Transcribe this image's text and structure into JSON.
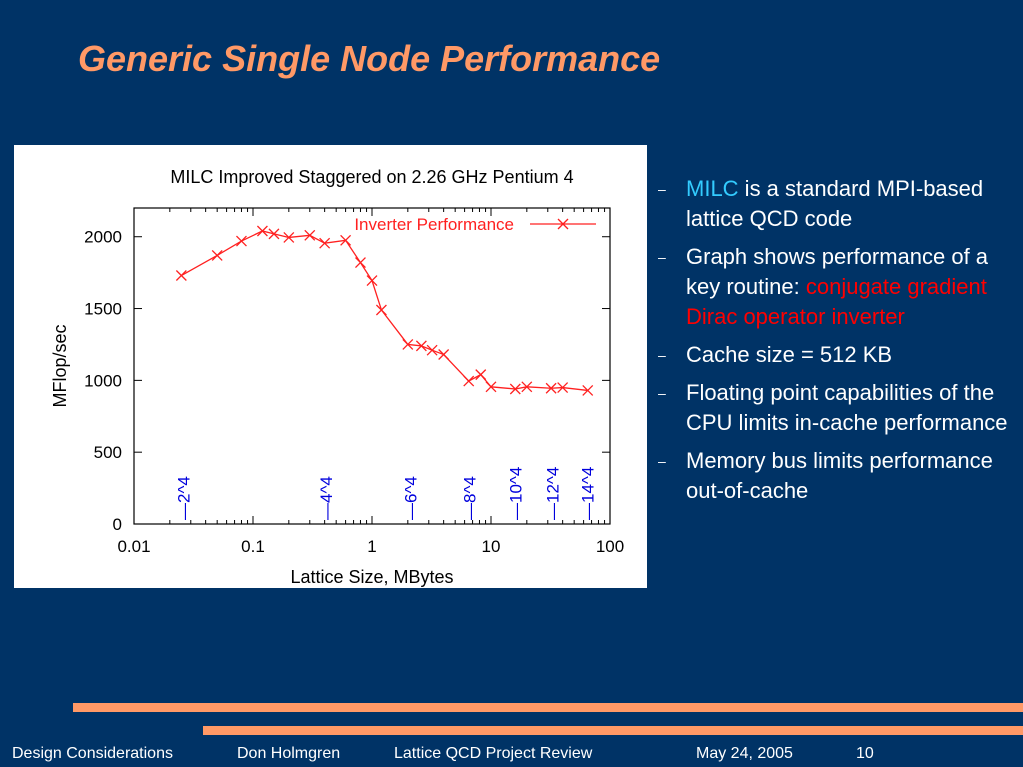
{
  "slide": {
    "title": "Generic Single Node Performance"
  },
  "bullets": [
    {
      "parts": [
        {
          "text": "MILC",
          "style": "cyan"
        },
        {
          "text": " is a standard MPI-based lattice QCD code",
          "style": "normal"
        }
      ]
    },
    {
      "parts": [
        {
          "text": "Graph shows performance of a key routine: ",
          "style": "normal"
        },
        {
          "text": "conjugate gradient Dirac operator inverter",
          "style": "red"
        }
      ]
    },
    {
      "parts": [
        {
          "text": "Cache size = 512 KB",
          "style": "normal"
        }
      ]
    },
    {
      "parts": [
        {
          "text": "Floating point capabilities of the CPU limits in-cache performance",
          "style": "normal"
        }
      ]
    },
    {
      "parts": [
        {
          "text": "Memory bus limits performance out-of-cache",
          "style": "normal"
        }
      ]
    }
  ],
  "footer": {
    "section": "Design Considerations",
    "author": "Don Holmgren",
    "event": "Lattice QCD Project Review",
    "date": "May 24, 2005",
    "page": "10"
  },
  "colors": {
    "background": "#003366",
    "title": "#ff9966",
    "accent_bar": "#ff9966",
    "series": "#ff2020",
    "markers": "#0000dd"
  },
  "chart_data": {
    "type": "line",
    "title": "MILC Improved Staggered on 2.26 GHz Pentium 4",
    "xlabel": "Lattice Size, MBytes",
    "ylabel": "MFlop/sec",
    "xscale": "log",
    "xlim": [
      0.01,
      100
    ],
    "ylim": [
      0,
      2200
    ],
    "xticks": [
      0.01,
      0.1,
      1,
      10,
      100
    ],
    "xtick_labels": [
      "0.01",
      "0.1",
      "1",
      "10",
      "100"
    ],
    "yticks": [
      0,
      500,
      1000,
      1500,
      2000
    ],
    "ytick_labels": [
      "0",
      "500",
      "1000",
      "1500",
      "2000"
    ],
    "legend": "top-right",
    "grid": false,
    "series": [
      {
        "name": "Inverter Performance",
        "x": [
          0.025,
          0.05,
          0.08,
          0.12,
          0.15,
          0.2,
          0.3,
          0.4,
          0.6,
          0.8,
          1.0,
          1.2,
          2.0,
          2.6,
          3.2,
          4.0,
          6.5,
          8.2,
          10,
          16,
          20,
          32,
          40,
          65
        ],
        "y": [
          1730,
          1870,
          1970,
          2040,
          2020,
          1995,
          2010,
          1955,
          1975,
          1820,
          1695,
          1490,
          1250,
          1240,
          1210,
          1180,
          995,
          1040,
          955,
          940,
          955,
          945,
          950,
          930
        ]
      }
    ],
    "annotations": [
      {
        "label": "—2^4",
        "x": 0.026
      },
      {
        "label": "—4^4",
        "x": 0.41
      },
      {
        "label": "—6^4",
        "x": 2.1
      },
      {
        "label": "—8^4",
        "x": 6.6
      },
      {
        "label": "—10^4",
        "x": 16
      },
      {
        "label": "—12^4",
        "x": 33
      },
      {
        "label": "—14^4",
        "x": 65
      }
    ]
  }
}
